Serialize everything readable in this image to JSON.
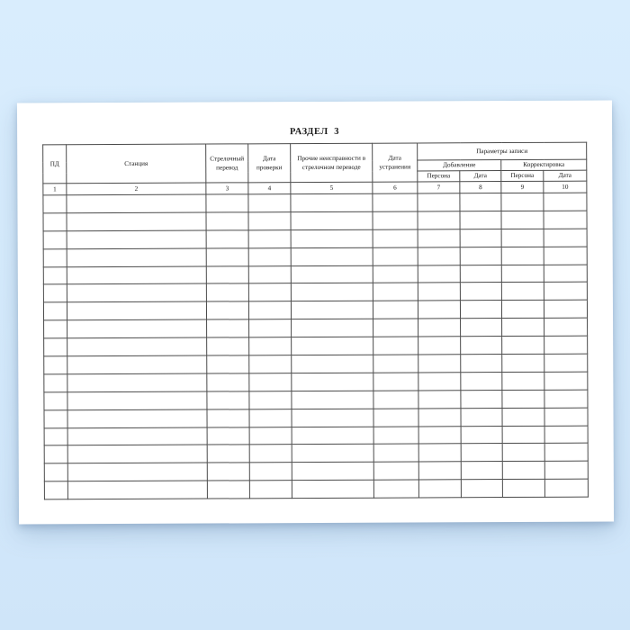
{
  "page": {
    "title": "РАЗДЕЛ  3"
  },
  "table": {
    "group_header": "Параметры записи",
    "subgroups": [
      {
        "label": "Добавление"
      },
      {
        "label": "Корректировка"
      }
    ],
    "columns": [
      {
        "label": "ПД",
        "num": "1"
      },
      {
        "label": "Станция",
        "num": "2"
      },
      {
        "label": "Стрелочный перевод",
        "num": "3"
      },
      {
        "label": "Дата проверки",
        "num": "4"
      },
      {
        "label": "Прочие неисправности в стрелочном переводе",
        "num": "5"
      },
      {
        "label": "Дата устранения",
        "num": "6"
      },
      {
        "label": "Персона",
        "num": "7"
      },
      {
        "label": "Дата",
        "num": "8"
      },
      {
        "label": "Персона",
        "num": "9"
      },
      {
        "label": "Дата",
        "num": "10"
      }
    ],
    "empty_rows": 17
  },
  "colors": {
    "background_top": "#d9edfd",
    "background_bottom": "#cfe5f9",
    "page": "#ffffff",
    "border": "#4b4b4b",
    "text": "#1a1a1a"
  }
}
